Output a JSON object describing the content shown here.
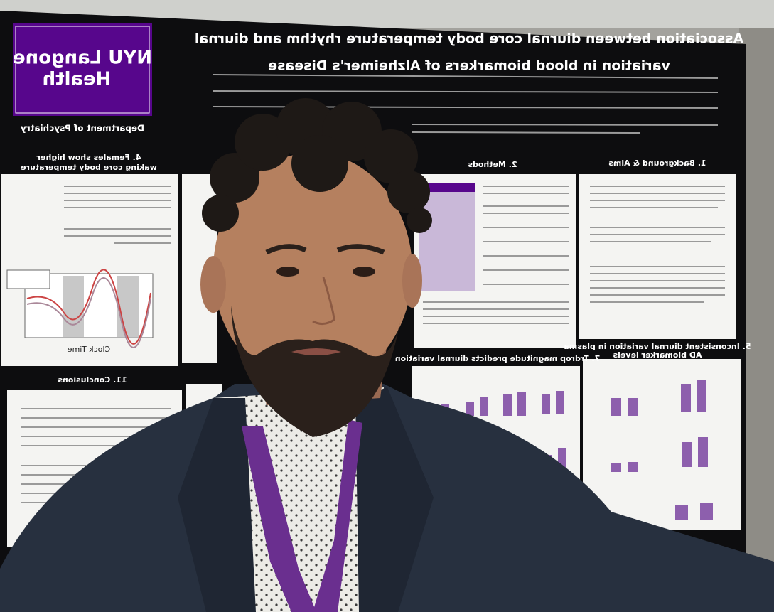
{
  "poster": {
    "logo": [
      "NYU Langone",
      "Health"
    ],
    "department": "Department of Psychiatry",
    "title": [
      "Association between diurnal core body temperature rhythm and diurnal",
      "variation in blood biomarkers of Alzheimer's Disease"
    ],
    "sections": {
      "background": "1. Background & Aims",
      "methods": "2. Methods",
      "females": [
        "4. Females show higher",
        "waking core body temperature"
      ],
      "plasma": [
        "5. Inconsistent diurnal variation in plasma",
        "AD biomarker levels"
      ],
      "trdrop": "7. Trdrop magnitude predicts diurnal variation",
      "conclusions": "11. Conclusions"
    },
    "axis_label": "Clock Time"
  }
}
